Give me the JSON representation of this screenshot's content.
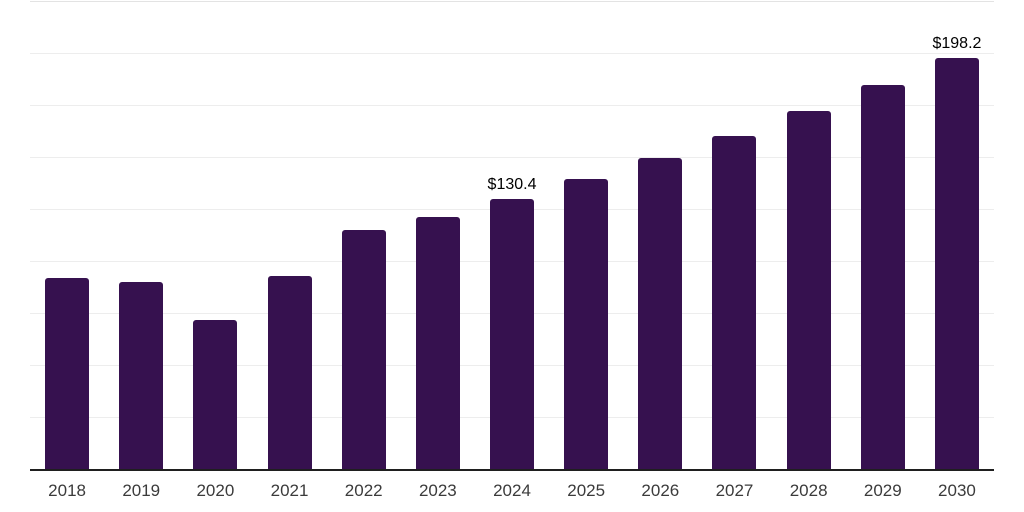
{
  "chart_data": {
    "type": "bar",
    "title": "",
    "xlabel": "",
    "ylabel": "",
    "categories": [
      "2018",
      "2019",
      "2020",
      "2021",
      "2022",
      "2023",
      "2024",
      "2025",
      "2026",
      "2027",
      "2028",
      "2029",
      "2030"
    ],
    "values": [
      92.5,
      90.6,
      71.9,
      93.5,
      115.4,
      121.5,
      130.4,
      139.8,
      149.9,
      160.8,
      172.4,
      184.9,
      198.2
    ],
    "data_labels": [
      "",
      "",
      "",
      "",
      "",
      "",
      "$130.4",
      "",
      "",
      "",
      "",
      "",
      "$198.2"
    ],
    "ylim": [
      0,
      225
    ],
    "gridline_step": 25,
    "grid": "horizontal",
    "legend": "none",
    "y_axis_tick_labels_visible": false,
    "colors": {
      "bar": "#36114F",
      "gridline": "#ededed",
      "top_gridline": "#e3e3e3",
      "axis_line": "#1f1f1f",
      "tick_label": "#3b3b3b",
      "data_label": "#000000"
    }
  }
}
